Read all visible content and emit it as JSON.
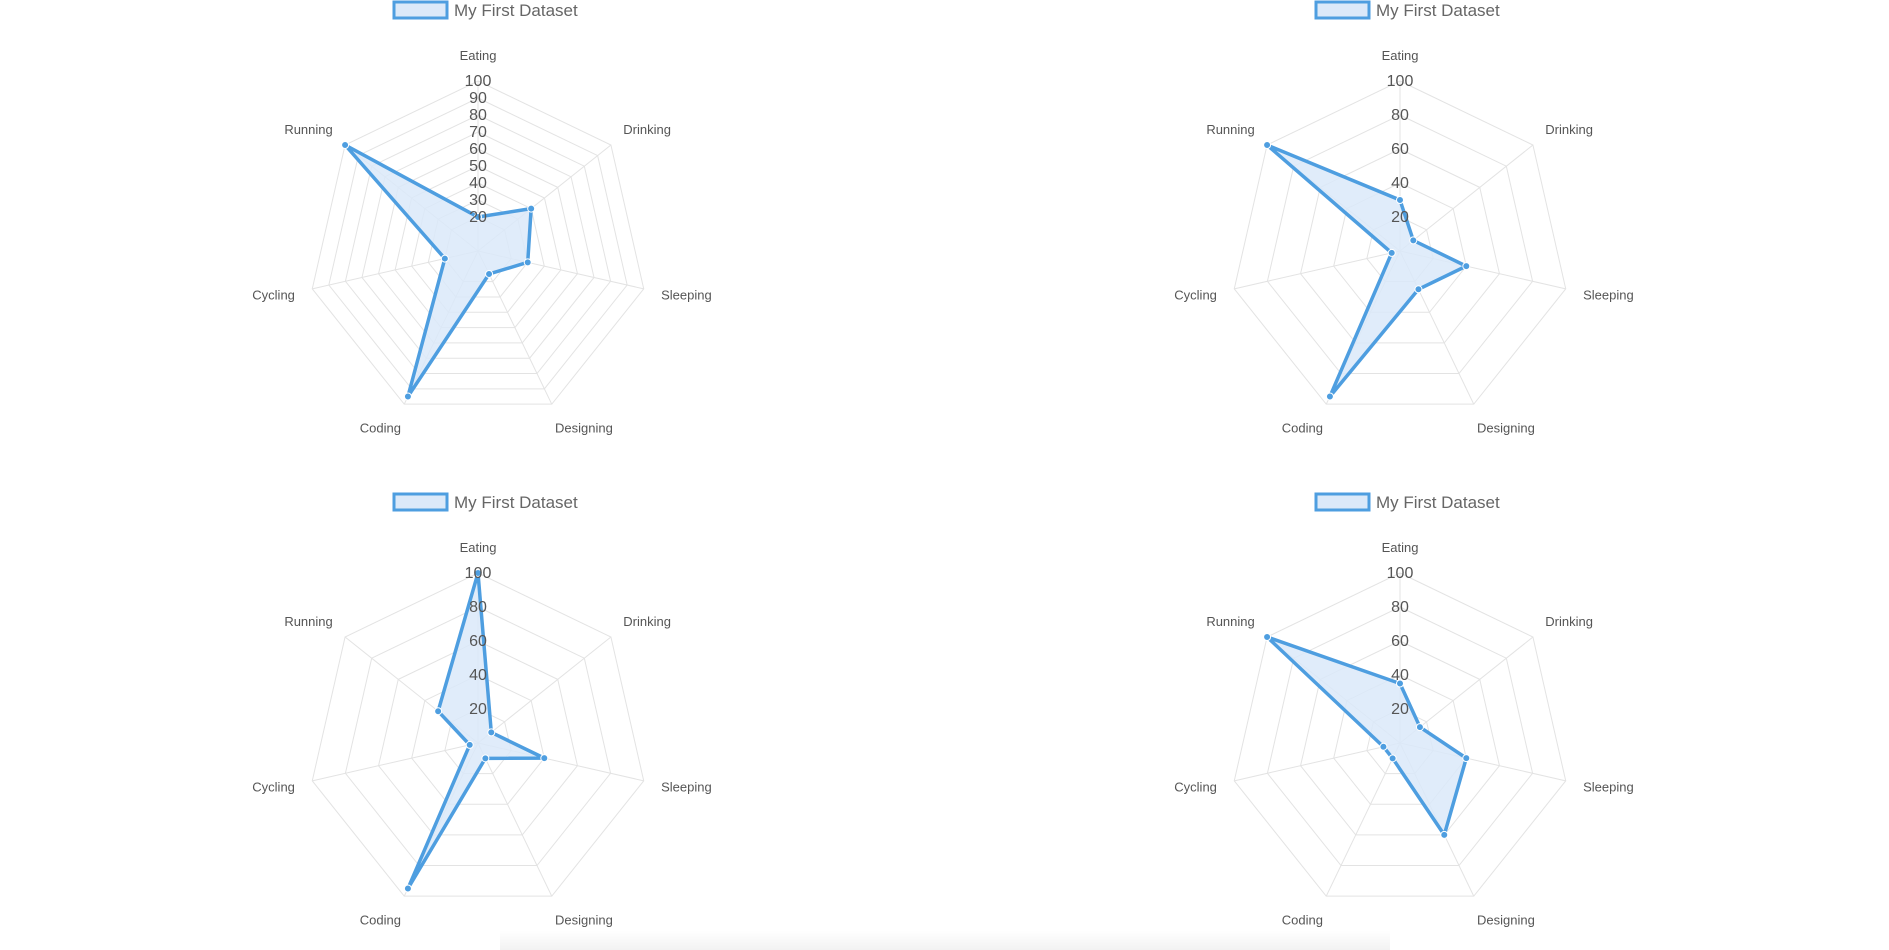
{
  "colors": {
    "stroke": "#4e9ee0",
    "fill": "#dbe9f9",
    "grid": "#e3e3e3",
    "text": "#666666"
  },
  "chart_data": [
    {
      "type": "radar",
      "legend": [
        "My First Dataset"
      ],
      "labels": [
        "Eating",
        "Drinking",
        "Sleeping",
        "Designing",
        "Coding",
        "Cycling",
        "Running"
      ],
      "ticks": [
        "20",
        "30",
        "40",
        "50",
        "60",
        "70",
        "80",
        "90",
        "100"
      ],
      "rlim": [
        0,
        100
      ],
      "series": [
        {
          "name": "My First Dataset",
          "values": [
            20,
            40,
            30,
            15,
            95,
            20,
            100
          ]
        }
      ]
    },
    {
      "type": "radar",
      "legend": [
        "My First Dataset"
      ],
      "labels": [
        "Eating",
        "Drinking",
        "Sleeping",
        "Designing",
        "Coding",
        "Cycling",
        "Running"
      ],
      "ticks": [
        "20",
        "40",
        "60",
        "80",
        "100"
      ],
      "rlim": [
        0,
        100
      ],
      "series": [
        {
          "name": "My First Dataset",
          "values": [
            30,
            10,
            40,
            25,
            95,
            5,
            100
          ]
        }
      ]
    },
    {
      "type": "radar",
      "legend": [
        "My First Dataset"
      ],
      "labels": [
        "Eating",
        "Drinking",
        "Sleeping",
        "Designing",
        "Coding",
        "Cycling",
        "Running"
      ],
      "ticks": [
        "20",
        "40",
        "60",
        "80",
        "100"
      ],
      "rlim": [
        0,
        100
      ],
      "series": [
        {
          "name": "My First Dataset",
          "values": [
            100,
            10,
            40,
            10,
            95,
            5,
            30
          ]
        }
      ]
    },
    {
      "type": "radar",
      "legend": [
        "My First Dataset"
      ],
      "labels": [
        "Eating",
        "Drinking",
        "Sleeping",
        "Designing",
        "Coding",
        "Cycling",
        "Running"
      ],
      "ticks": [
        "20",
        "40",
        "60",
        "80",
        "100"
      ],
      "rlim": [
        0,
        100
      ],
      "series": [
        {
          "name": "My First Dataset",
          "values": [
            35,
            15,
            40,
            60,
            10,
            10,
            100
          ]
        }
      ]
    }
  ]
}
